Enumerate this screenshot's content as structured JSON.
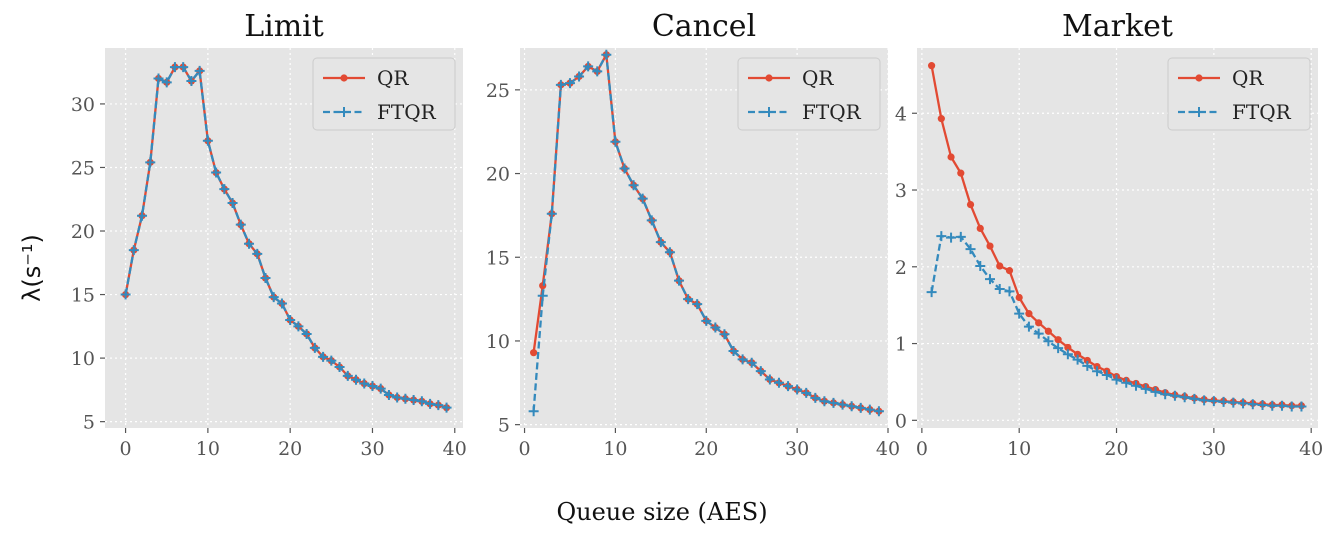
{
  "chart_data": [
    {
      "type": "line",
      "title": "Limit",
      "xlim": [
        -2.5,
        41
      ],
      "ylim": [
        4.5,
        34.4
      ],
      "xticks": [
        0,
        10,
        20,
        30,
        40
      ],
      "yticks": [
        5,
        10,
        15,
        20,
        25,
        30
      ],
      "legend": "top-right",
      "grid": true,
      "series": [
        {
          "name": "QR",
          "color": "#e24a33",
          "marker": "dot",
          "x": [
            0,
            1,
            2,
            3,
            4,
            5,
            6,
            7,
            8,
            9,
            10,
            11,
            12,
            13,
            14,
            15,
            16,
            17,
            18,
            19,
            20,
            21,
            22,
            23,
            24,
            25,
            26,
            27,
            28,
            29,
            30,
            31,
            32,
            33,
            34,
            35,
            36,
            37,
            38,
            39
          ],
          "y": [
            15.0,
            18.5,
            21.2,
            25.4,
            32.0,
            31.7,
            32.9,
            32.9,
            31.8,
            32.6,
            27.1,
            24.6,
            23.3,
            22.2,
            20.5,
            19.0,
            18.2,
            16.3,
            14.8,
            14.3,
            13.0,
            12.5,
            11.9,
            10.8,
            10.1,
            9.8,
            9.3,
            8.6,
            8.3,
            8.0,
            7.8,
            7.6,
            7.1,
            6.9,
            6.8,
            6.7,
            6.6,
            6.4,
            6.3,
            6.1
          ]
        },
        {
          "name": "FTQR",
          "color": "#348abd",
          "marker": "plus",
          "dashed": true,
          "x": [
            0,
            1,
            2,
            3,
            4,
            5,
            6,
            7,
            8,
            9,
            10,
            11,
            12,
            13,
            14,
            15,
            16,
            17,
            18,
            19,
            20,
            21,
            22,
            23,
            24,
            25,
            26,
            27,
            28,
            29,
            30,
            31,
            32,
            33,
            34,
            35,
            36,
            37,
            38,
            39
          ],
          "y": [
            15.0,
            18.5,
            21.2,
            25.4,
            32.0,
            31.7,
            32.9,
            32.9,
            31.8,
            32.6,
            27.1,
            24.6,
            23.3,
            22.2,
            20.5,
            19.0,
            18.2,
            16.3,
            14.8,
            14.3,
            13.0,
            12.5,
            11.9,
            10.8,
            10.1,
            9.8,
            9.3,
            8.6,
            8.3,
            8.0,
            7.8,
            7.6,
            7.1,
            6.9,
            6.8,
            6.7,
            6.6,
            6.4,
            6.3,
            6.1
          ]
        }
      ]
    },
    {
      "type": "line",
      "title": "Cancel",
      "xlim": [
        -0.5,
        40
      ],
      "ylim": [
        4.8,
        27.5
      ],
      "xticks": [
        0,
        10,
        20,
        30,
        40
      ],
      "yticks": [
        5,
        10,
        15,
        20,
        25
      ],
      "legend": "top-right",
      "grid": true,
      "series": [
        {
          "name": "QR",
          "color": "#e24a33",
          "marker": "dot",
          "x": [
            1,
            2,
            3,
            4,
            5,
            6,
            7,
            8,
            9,
            10,
            11,
            12,
            13,
            14,
            15,
            16,
            17,
            18,
            19,
            20,
            21,
            22,
            23,
            24,
            25,
            26,
            27,
            28,
            29,
            30,
            31,
            32,
            33,
            34,
            35,
            36,
            37,
            38,
            39
          ],
          "y": [
            9.3,
            13.3,
            17.6,
            25.3,
            25.4,
            25.8,
            26.4,
            26.1,
            27.1,
            21.9,
            20.3,
            19.3,
            18.5,
            17.2,
            15.9,
            15.3,
            13.6,
            12.5,
            12.2,
            11.2,
            10.8,
            10.4,
            9.4,
            8.9,
            8.7,
            8.2,
            7.7,
            7.5,
            7.3,
            7.1,
            6.9,
            6.6,
            6.4,
            6.3,
            6.2,
            6.1,
            6.0,
            5.9,
            5.8
          ]
        },
        {
          "name": "FTQR",
          "color": "#348abd",
          "marker": "plus",
          "dashed": true,
          "x": [
            1,
            2,
            3,
            4,
            5,
            6,
            7,
            8,
            9,
            10,
            11,
            12,
            13,
            14,
            15,
            16,
            17,
            18,
            19,
            20,
            21,
            22,
            23,
            24,
            25,
            26,
            27,
            28,
            29,
            30,
            31,
            32,
            33,
            34,
            35,
            36,
            37,
            38,
            39
          ],
          "y": [
            5.8,
            12.7,
            17.6,
            25.3,
            25.4,
            25.8,
            26.4,
            26.1,
            27.1,
            21.9,
            20.3,
            19.3,
            18.5,
            17.2,
            15.9,
            15.3,
            13.6,
            12.5,
            12.2,
            11.2,
            10.8,
            10.4,
            9.4,
            8.9,
            8.7,
            8.2,
            7.7,
            7.5,
            7.3,
            7.1,
            6.9,
            6.6,
            6.4,
            6.3,
            6.2,
            6.1,
            6.0,
            5.9,
            5.8
          ]
        }
      ]
    },
    {
      "type": "line",
      "title": "Market",
      "xlim": [
        -0.5,
        40.7
      ],
      "ylim": [
        -0.1,
        4.85
      ],
      "xticks": [
        0,
        10,
        20,
        30,
        40
      ],
      "yticks": [
        0,
        1,
        2,
        3,
        4
      ],
      "legend": "top-right",
      "grid": true,
      "series": [
        {
          "name": "QR",
          "color": "#e24a33",
          "marker": "dot",
          "x": [
            1,
            2,
            3,
            4,
            5,
            6,
            7,
            8,
            9,
            10,
            11,
            12,
            13,
            14,
            15,
            16,
            17,
            18,
            19,
            20,
            21,
            22,
            23,
            24,
            25,
            26,
            27,
            28,
            29,
            30,
            31,
            32,
            33,
            34,
            35,
            36,
            37,
            38,
            39
          ],
          "y": [
            4.62,
            3.93,
            3.43,
            3.22,
            2.81,
            2.5,
            2.27,
            2.01,
            1.95,
            1.6,
            1.39,
            1.27,
            1.16,
            1.05,
            0.95,
            0.86,
            0.78,
            0.7,
            0.64,
            0.57,
            0.52,
            0.48,
            0.44,
            0.4,
            0.36,
            0.33,
            0.31,
            0.29,
            0.27,
            0.26,
            0.25,
            0.24,
            0.23,
            0.22,
            0.21,
            0.2,
            0.2,
            0.19,
            0.19
          ]
        },
        {
          "name": "FTQR",
          "color": "#348abd",
          "marker": "plus",
          "dashed": true,
          "x": [
            1,
            2,
            3,
            4,
            5,
            6,
            7,
            8,
            9,
            10,
            11,
            12,
            13,
            14,
            15,
            16,
            17,
            18,
            19,
            20,
            21,
            22,
            23,
            24,
            25,
            26,
            27,
            28,
            29,
            30,
            31,
            32,
            33,
            34,
            35,
            36,
            37,
            38,
            39
          ],
          "y": [
            1.67,
            2.4,
            2.38,
            2.39,
            2.23,
            2.01,
            1.84,
            1.71,
            1.68,
            1.39,
            1.22,
            1.13,
            1.03,
            0.94,
            0.86,
            0.79,
            0.71,
            0.64,
            0.59,
            0.53,
            0.49,
            0.45,
            0.41,
            0.37,
            0.34,
            0.32,
            0.3,
            0.28,
            0.26,
            0.25,
            0.24,
            0.23,
            0.22,
            0.21,
            0.2,
            0.19,
            0.19,
            0.18,
            0.18
          ]
        }
      ]
    }
  ],
  "xlabel": "Queue size (AES)",
  "ylabel": "λ(s⁻¹)"
}
